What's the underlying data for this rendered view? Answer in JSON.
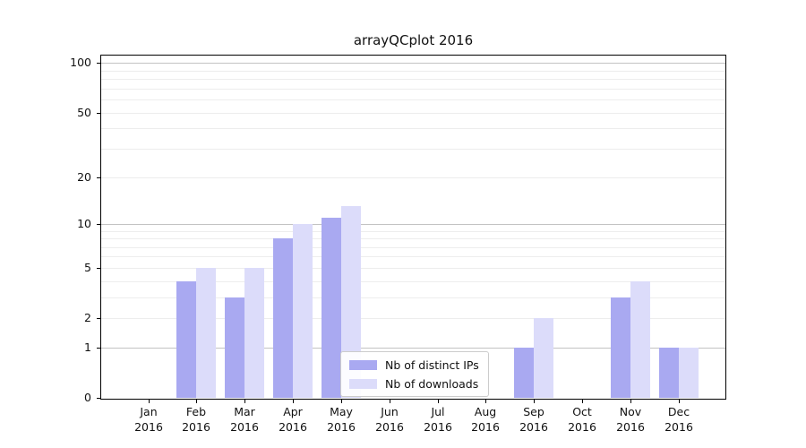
{
  "title": "arrayQCplot 2016",
  "chart_data": {
    "type": "bar",
    "title": "arrayQCplot 2016",
    "xlabel": "",
    "ylabel": "",
    "categories": [
      "Jan",
      "Feb",
      "Mar",
      "Apr",
      "May",
      "Jun",
      "Jul",
      "Aug",
      "Sep",
      "Oct",
      "Nov",
      "Dec"
    ],
    "x_tick_year_line": "2016",
    "series": [
      {
        "name": "Nb of distinct IPs",
        "color": "#a9a9f1",
        "values": [
          0,
          4,
          3,
          8,
          11,
          0,
          0,
          0,
          1,
          0,
          3,
          1
        ]
      },
      {
        "name": "Nb of downloads",
        "color": "#dcdcfa",
        "values": [
          0,
          5,
          5,
          10,
          13,
          0,
          0,
          0,
          2,
          0,
          4,
          1
        ]
      }
    ],
    "yscale": "log1p",
    "ylim": [
      0,
      111
    ],
    "yticks": [
      0,
      1,
      2,
      5,
      10,
      20,
      50,
      100
    ],
    "major_gridlines": [
      1,
      10,
      100
    ],
    "minor_gridlines": [
      2,
      3,
      4,
      5,
      6,
      7,
      8,
      9,
      20,
      30,
      40,
      50,
      60,
      70,
      80,
      90
    ],
    "grid_major_color": "#c3c3c3",
    "grid_minor_color": "#ededed",
    "legend_position": "lower-center-inside",
    "grid": "on"
  }
}
